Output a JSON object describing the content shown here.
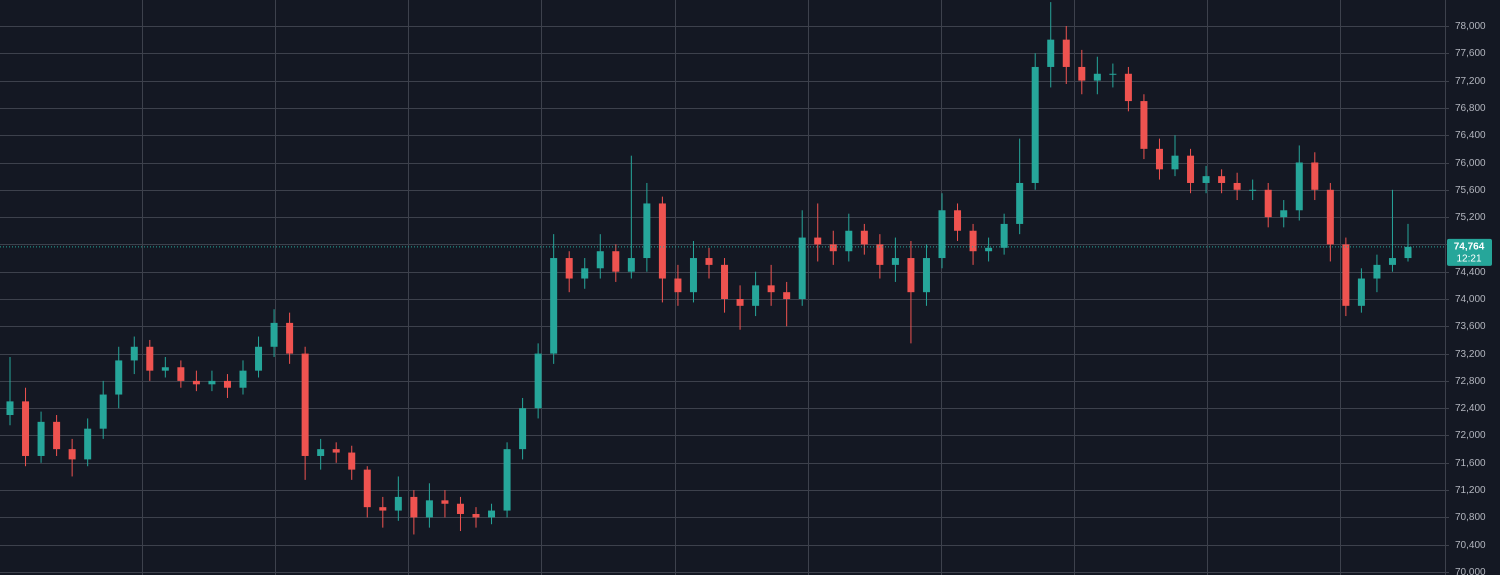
{
  "chart_data": {
    "type": "candlestick",
    "up_color": "#26a69a",
    "down_color": "#ef5350",
    "grid": true,
    "ylim": [
      69956,
      78381
    ],
    "yticks": [
      {
        "value": 70000,
        "label": "70,000"
      },
      {
        "value": 70400,
        "label": "70,400"
      },
      {
        "value": 70800,
        "label": "70,800"
      },
      {
        "value": 71200,
        "label": "71,200"
      },
      {
        "value": 71600,
        "label": "71,600"
      },
      {
        "value": 72000,
        "label": "72,000"
      },
      {
        "value": 72400,
        "label": "72,400"
      },
      {
        "value": 72800,
        "label": "72,800"
      },
      {
        "value": 73200,
        "label": "73,200"
      },
      {
        "value": 73600,
        "label": "73,600"
      },
      {
        "value": 74000,
        "label": "74,000"
      },
      {
        "value": 74400,
        "label": "74,400"
      },
      {
        "value": 74800,
        "label": "74,800"
      },
      {
        "value": 75200,
        "label": "75,200"
      },
      {
        "value": 75600,
        "label": "75,600"
      },
      {
        "value": 76000,
        "label": "76,000"
      },
      {
        "value": 76400,
        "label": "76,400"
      },
      {
        "value": 76800,
        "label": "76,800"
      },
      {
        "value": 77200,
        "label": "77,200"
      },
      {
        "value": 77600,
        "label": "77,600"
      },
      {
        "value": 78000,
        "label": "78,000"
      }
    ],
    "last_price": 74764,
    "last_price_label": "74,764",
    "countdown": "12:21",
    "open": [
      72300,
      72500,
      71700,
      72200,
      71800,
      71650,
      72100,
      72600,
      73100,
      73300,
      72950,
      73000,
      72800,
      72750,
      72800,
      72700,
      72950,
      73300,
      73650,
      73200,
      71700,
      71800,
      71750,
      71500,
      70950,
      70900,
      71100,
      70800,
      71050,
      71000,
      70850,
      70800,
      70900,
      71800,
      72400,
      73200,
      74600,
      74300,
      74450,
      74700,
      74400,
      74600,
      75400,
      74300,
      74100,
      74600,
      74500,
      74000,
      73900,
      74200,
      74100,
      74000,
      74900,
      74800,
      74700,
      75000,
      74800,
      74500,
      74600,
      74100,
      74600,
      75300,
      75000,
      74700,
      74750,
      75100,
      75700,
      77400,
      77800,
      77400,
      77200,
      77300,
      77300,
      76900,
      76200,
      75900,
      76100,
      75700,
      75800,
      75700,
      75600,
      75600,
      75200,
      75300,
      76000,
      75600,
      74800,
      73900,
      74300,
      74500,
      74600
    ],
    "high": [
      73150,
      72700,
      72350,
      72300,
      71950,
      72250,
      72800,
      73300,
      73450,
      73400,
      73150,
      73100,
      72950,
      72950,
      72900,
      73100,
      73450,
      73850,
      73800,
      73300,
      71950,
      71900,
      71850,
      71550,
      71100,
      71400,
      71200,
      71300,
      71200,
      71100,
      70950,
      71000,
      71900,
      72550,
      73350,
      74950,
      74700,
      74600,
      74950,
      74800,
      76100,
      75700,
      75500,
      74500,
      74850,
      74750,
      74600,
      74200,
      74400,
      74500,
      74250,
      75300,
      75400,
      75000,
      75250,
      75100,
      74950,
      74900,
      74850,
      74800,
      75550,
      75400,
      75100,
      74900,
      75250,
      76350,
      77600,
      78350,
      78000,
      77650,
      77550,
      77450,
      77400,
      77000,
      76350,
      76400,
      76200,
      75950,
      75900,
      75850,
      75750,
      75700,
      75450,
      76250,
      76150,
      75700,
      74900,
      74450,
      74650,
      75600,
      75100
    ],
    "low": [
      72150,
      71550,
      71600,
      71700,
      71400,
      71550,
      71950,
      72400,
      72900,
      72800,
      72850,
      72700,
      72650,
      72650,
      72550,
      72600,
      72850,
      73150,
      73050,
      71350,
      71500,
      71600,
      71350,
      70800,
      70650,
      70750,
      70550,
      70650,
      70800,
      70600,
      70650,
      70700,
      70800,
      71650,
      72250,
      73050,
      74100,
      74150,
      74300,
      74250,
      74300,
      74400,
      73950,
      73900,
      73950,
      74300,
      73800,
      73550,
      73750,
      73900,
      73600,
      73900,
      74550,
      74500,
      74550,
      74650,
      74300,
      74250,
      73350,
      73900,
      74450,
      74850,
      74500,
      74550,
      74650,
      74950,
      75600,
      77100,
      77150,
      77000,
      77000,
      77100,
      76750,
      76050,
      75750,
      75800,
      75550,
      75550,
      75550,
      75450,
      75450,
      75050,
      75050,
      75150,
      75450,
      74550,
      73750,
      73800,
      74100,
      74400,
      74550
    ],
    "close": [
      72500,
      71700,
      72200,
      71800,
      71650,
      72100,
      72600,
      73100,
      73300,
      72950,
      73000,
      72800,
      72750,
      72800,
      72700,
      72950,
      73300,
      73650,
      73200,
      71700,
      71800,
      71750,
      71500,
      70950,
      70900,
      71100,
      70800,
      71050,
      71000,
      70850,
      70800,
      70900,
      71800,
      72400,
      73200,
      74600,
      74300,
      74450,
      74700,
      74400,
      74600,
      75400,
      74300,
      74100,
      74600,
      74500,
      74000,
      73900,
      74200,
      74100,
      74000,
      74900,
      74800,
      74700,
      75000,
      74800,
      74500,
      74600,
      74100,
      74600,
      75300,
      75000,
      74700,
      74750,
      75100,
      75700,
      77400,
      77800,
      77400,
      77200,
      77300,
      77300,
      76900,
      76200,
      75900,
      76100,
      75700,
      75800,
      75700,
      75600,
      75600,
      75200,
      75300,
      76000,
      75600,
      74800,
      73900,
      74300,
      74500,
      74600,
      74764
    ]
  }
}
